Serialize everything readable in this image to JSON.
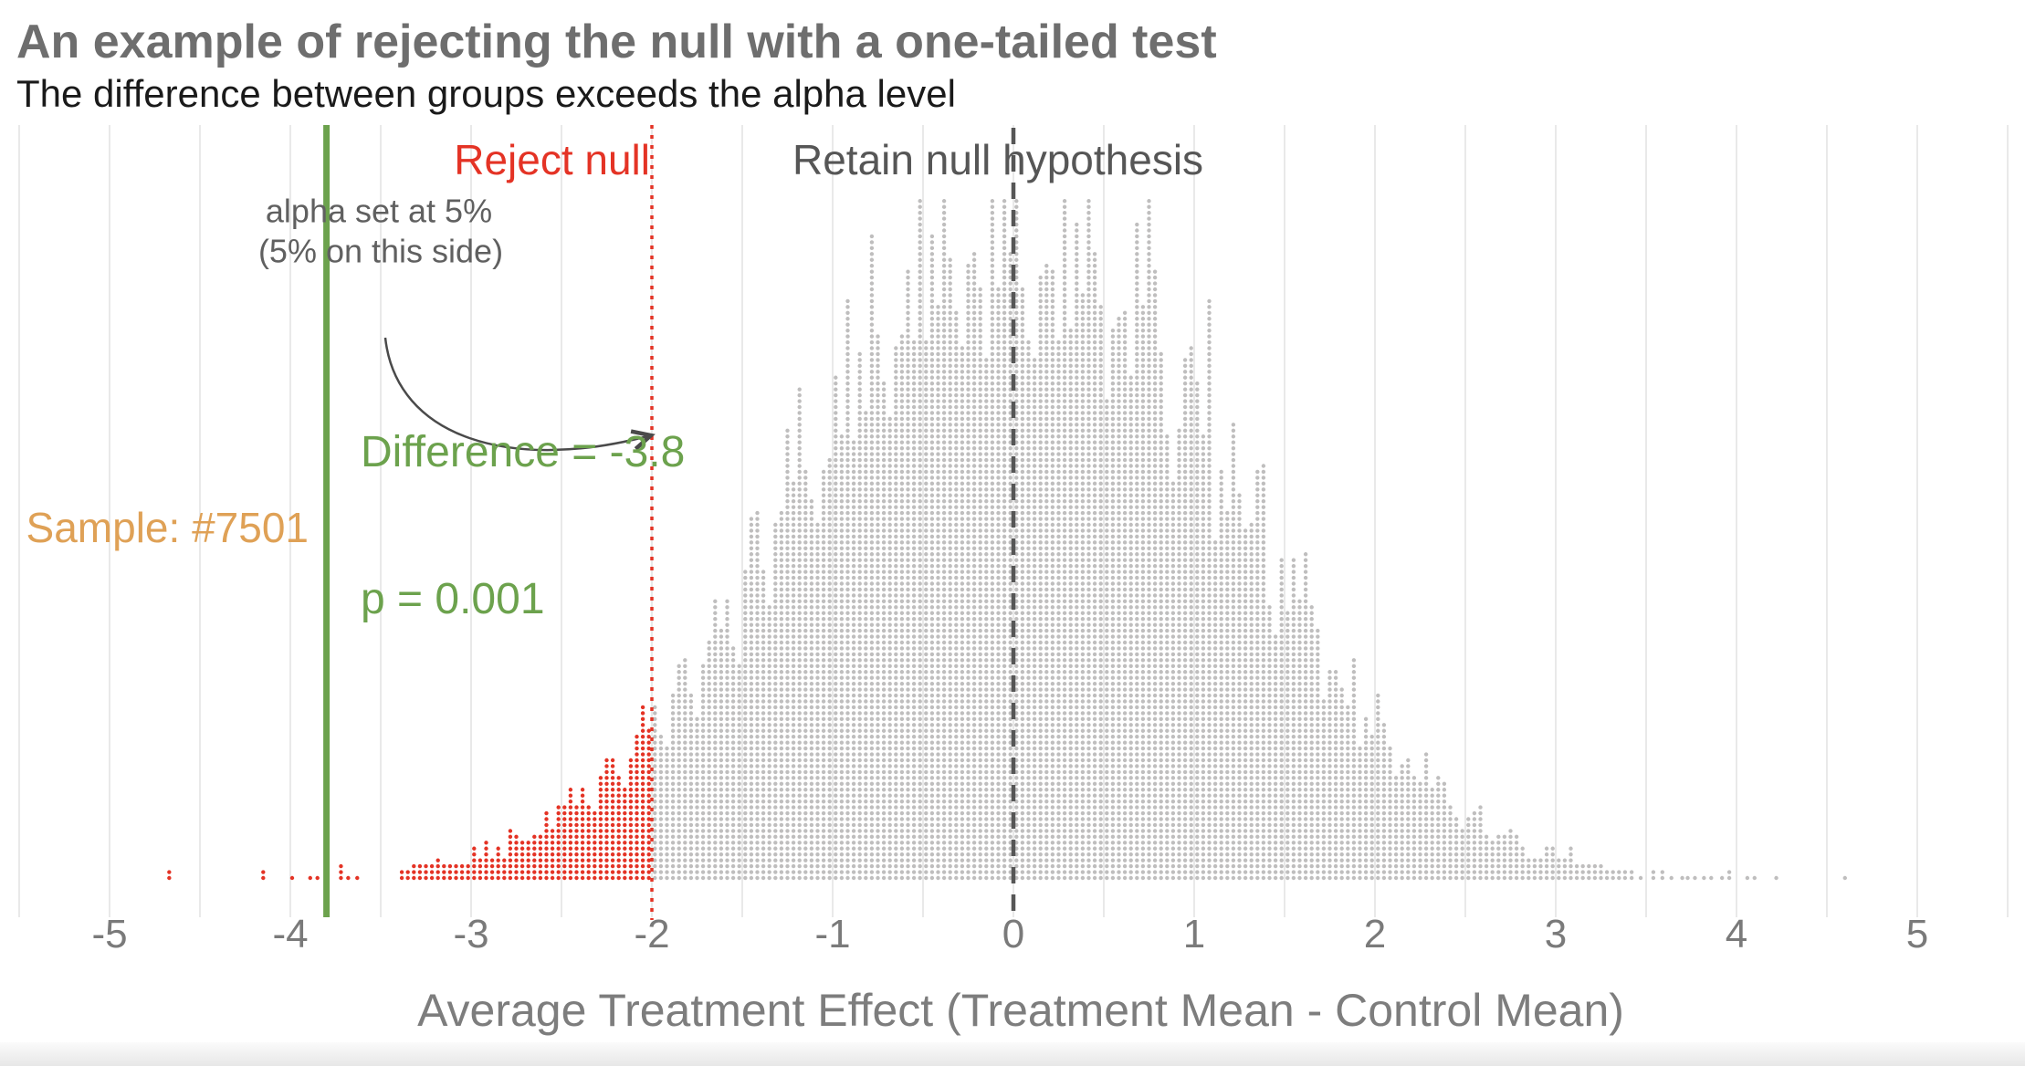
{
  "header": {
    "title": "An example of rejecting the null with a one-tailed test",
    "subtitle": "The difference between groups exceeds the alpha level"
  },
  "annotations": {
    "reject_label": "Reject null",
    "retain_label": "Retain null hypothesis",
    "alpha_line1": "alpha set at 5%",
    "alpha_line2": "(5% on this side)",
    "sample_label": "Sample: #7501",
    "difference_label": "Difference = -3.8",
    "p_label": "p = 0.001"
  },
  "colors": {
    "reject_red": "#E43325",
    "retain_gray": "#BFBEBE",
    "null_line_gray": "#565656",
    "difference_green": "#6CA24D",
    "sample_orange": "#DFA156",
    "gridline": "#E9E9E9",
    "arrow": "#4A4A4A",
    "title_gray": "#6E6E6E",
    "tick_gray": "#7A7A7A"
  },
  "chart_data": {
    "type": "dot-histogram",
    "title": "An example of rejecting the null with a one-tailed test",
    "subtitle": "The difference between groups exceeds the alpha level",
    "xlabel": "Average Treatment Effect (Treatment Mean - Control Mean)",
    "x_ticks": [
      "-5",
      "-4",
      "-3",
      "-2",
      "-1",
      "0",
      "1",
      "2",
      "3",
      "4",
      "5"
    ],
    "x_tick_values": [
      -5,
      -4,
      -3,
      -2,
      -1,
      0,
      1,
      2,
      3,
      4,
      5
    ],
    "xlim": [
      -5.6,
      5.6
    ],
    "gridlines_every": 0.5,
    "grid": true,
    "legend": false,
    "alpha": 0.05,
    "alpha_cutoff": -2,
    "observed_difference": -3.8,
    "p_value": 0.001,
    "sample_number": 7501,
    "null_value": 0,
    "reference_lines": [
      {
        "name": "observed-difference",
        "x": -3.8,
        "style": "solid",
        "color": "#6CA24D"
      },
      {
        "name": "alpha-cutoff",
        "x": -2,
        "style": "dotted",
        "color": "#E43325"
      },
      {
        "name": "null-hypothesis-center",
        "x": 0,
        "style": "dashed",
        "color": "#565656"
      }
    ],
    "regions": [
      {
        "name": "reject",
        "condition": "x <= -2",
        "dot_color": "#E43325"
      },
      {
        "name": "retain",
        "condition": "x > -2",
        "dot_color": "#BFBEBE"
      }
    ],
    "bins": {
      "start": -3.35,
      "step": 0.1,
      "counts": [
        7,
        9,
        14,
        11,
        19,
        16,
        25,
        24,
        36,
        44,
        41,
        60,
        57,
        81,
        78,
        107,
        99,
        133,
        126,
        178,
        164,
        210,
        220,
        203,
        265,
        245,
        290,
        262,
        322,
        300,
        330,
        302,
        312,
        328,
        315,
        296,
        322,
        305,
        335,
        272,
        300,
        318,
        236,
        258,
        264,
        192,
        205,
        202,
        146,
        151,
        147,
        103,
        105,
        76,
        83,
        59,
        60,
        52,
        35,
        36,
        25,
        27,
        17,
        18,
        16,
        10,
        8,
        5
      ]
    },
    "outliers": [
      [
        -4.67,
        2
      ],
      [
        -4.15,
        2
      ],
      [
        -3.99,
        1
      ],
      [
        -3.89,
        1
      ],
      [
        -3.85,
        1
      ],
      [
        -3.8,
        2
      ],
      [
        -3.72,
        3
      ],
      [
        -3.68,
        1
      ],
      [
        -3.63,
        1
      ],
      [
        3.42,
        2
      ],
      [
        3.47,
        1
      ],
      [
        3.54,
        2
      ],
      [
        3.59,
        2
      ],
      [
        3.64,
        1
      ],
      [
        3.7,
        1
      ],
      [
        3.73,
        1
      ],
      [
        3.77,
        1
      ],
      [
        3.82,
        1
      ],
      [
        3.86,
        1
      ],
      [
        3.92,
        1
      ],
      [
        3.96,
        2
      ],
      [
        4.06,
        1
      ],
      [
        4.1,
        1
      ],
      [
        4.22,
        1
      ],
      [
        4.6,
        1
      ]
    ]
  }
}
